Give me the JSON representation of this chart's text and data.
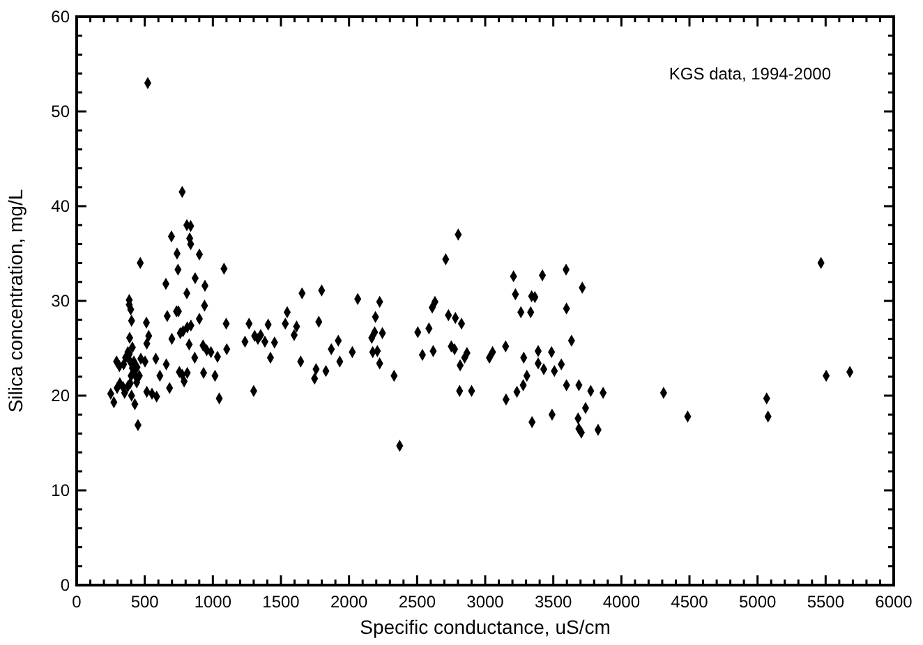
{
  "chart_data": {
    "type": "scatter",
    "xlabel": "Specific conductance, uS/cm",
    "ylabel": "Silica concentration, mg/L",
    "annotations": [
      "KGS data, 1994-2000"
    ],
    "marker": "diamond",
    "grid": false,
    "xlim": [
      0,
      6000
    ],
    "ylim": [
      0,
      60
    ],
    "xticks": [
      0,
      {
        "value": 100,
        "label": null
      },
      {
        "value": 200,
        "label": null
      },
      {
        "value": 300,
        "label": null
      },
      {
        "value": 400,
        "label": null
      },
      500,
      {
        "value": 600,
        "label": null
      },
      {
        "value": 700,
        "label": null
      },
      {
        "value": 800,
        "label": null
      },
      {
        "value": 900,
        "label": null
      },
      1000,
      {
        "value": 1100,
        "label": null
      },
      {
        "value": 1200,
        "label": null
      },
      {
        "value": 1300,
        "label": null
      },
      {
        "value": 1400,
        "label": null
      },
      1500,
      {
        "value": 1600,
        "label": null
      },
      {
        "value": 1700,
        "label": null
      },
      {
        "value": 1800,
        "label": null
      },
      {
        "value": 1900,
        "label": null
      },
      2000,
      {
        "value": 2100,
        "label": null
      },
      {
        "value": 2200,
        "label": null
      },
      {
        "value": 2300,
        "label": null
      },
      {
        "value": 2400,
        "label": null
      },
      2500,
      {
        "value": 2600,
        "label": null
      },
      {
        "value": 2700,
        "label": null
      },
      {
        "value": 2800,
        "label": null
      },
      {
        "value": 2900,
        "label": null
      },
      3000,
      {
        "value": 3100,
        "label": null
      },
      {
        "value": 3200,
        "label": null
      },
      {
        "value": 3300,
        "label": null
      },
      {
        "value": 3400,
        "label": null
      },
      3500,
      {
        "value": 3600,
        "label": null
      },
      {
        "value": 3700,
        "label": null
      },
      {
        "value": 3800,
        "label": null
      },
      {
        "value": 3900,
        "label": null
      },
      4000,
      {
        "value": 4100,
        "label": null
      },
      {
        "value": 4200,
        "label": null
      },
      {
        "value": 4300,
        "label": null
      },
      {
        "value": 4400,
        "label": null
      },
      4500,
      {
        "value": 4600,
        "label": null
      },
      {
        "value": 4700,
        "label": null
      },
      {
        "value": 4800,
        "label": null
      },
      {
        "value": 4900,
        "label": null
      },
      5000,
      {
        "value": 5100,
        "label": null
      },
      {
        "value": 5200,
        "label": null
      },
      {
        "value": 5300,
        "label": null
      },
      {
        "value": 5400,
        "label": null
      },
      5500,
      {
        "value": 5600,
        "label": null
      },
      {
        "value": 5700,
        "label": null
      },
      {
        "value": 5800,
        "label": null
      },
      {
        "value": 5900,
        "label": null
      },
      6000
    ],
    "yticks": [
      0,
      {
        "value": 2,
        "label": null
      },
      {
        "value": 4,
        "label": null
      },
      {
        "value": 6,
        "label": null
      },
      {
        "value": 8,
        "label": null
      },
      10,
      {
        "value": 12,
        "label": null
      },
      {
        "value": 14,
        "label": null
      },
      {
        "value": 16,
        "label": null
      },
      {
        "value": 18,
        "label": null
      },
      20,
      {
        "value": 22,
        "label": null
      },
      {
        "value": 24,
        "label": null
      },
      {
        "value": 26,
        "label": null
      },
      {
        "value": 28,
        "label": null
      },
      30,
      {
        "value": 32,
        "label": null
      },
      {
        "value": 34,
        "label": null
      },
      {
        "value": 36,
        "label": null
      },
      {
        "value": 38,
        "label": null
      },
      40,
      {
        "value": 42,
        "label": null
      },
      {
        "value": 44,
        "label": null
      },
      {
        "value": 46,
        "label": null
      },
      {
        "value": 48,
        "label": null
      },
      50,
      {
        "value": 52,
        "label": null
      },
      {
        "value": 54,
        "label": null
      },
      {
        "value": 56,
        "label": null
      },
      {
        "value": 58,
        "label": null
      },
      60
    ],
    "series": [
      {
        "color": "#000000",
        "x": [
          522,
          775,
          809,
          837,
          696,
          830,
          837,
          737,
          901,
          467,
          744,
          1082,
          870,
          655,
          942,
          809,
          939,
          386,
          386,
          397,
          403,
          512,
          747,
          733,
          901,
          665,
          1098,
          1266,
          1406,
          1532,
          1546,
          529,
          389,
          699,
          761,
          781,
          812,
          839,
          515,
          826,
          928,
          955,
          986,
          1034,
          1102,
          1236,
          1307,
          1351,
          1331,
          1382,
          1453,
          1423,
          1300,
          1047,
          867,
          932,
          1016,
          581,
          658,
          611,
          682,
          754,
          775,
          812,
          789,
          515,
          553,
          587,
          450,
          250,
          273,
          297,
          317,
          341,
          352,
          376,
          393,
          403,
          427,
          441,
          460,
          293,
          314,
          345,
          359,
          386,
          409,
          376,
          393,
          409,
          427,
          443,
          471,
          502,
          400,
          420,
          1655,
          1799,
          1615,
          1597,
          1778,
          2064,
          2225,
          2194,
          2188,
          2245,
          2167,
          2174,
          2208,
          2225,
          2331,
          2372,
          1645,
          1758,
          1747,
          1830,
          1932,
          1870,
          1921,
          2024,
          2802,
          2710,
          2631,
          2611,
          2505,
          2587,
          2539,
          2618,
          2730,
          2781,
          2826,
          2751,
          2775,
          2866,
          2849,
          2816,
          2812,
          2900,
          3054,
          3031,
          3150,
          3208,
          3420,
          3594,
          3222,
          3341,
          3365,
          3262,
          3334,
          3597,
          3713,
          3283,
          3389,
          3487,
          3389,
          3430,
          3508,
          3559,
          3306,
          3279,
          3233,
          3153,
          3597,
          3688,
          3634,
          3344,
          3491,
          3682,
          3688,
          3706,
          3737,
          3775,
          3866,
          3829,
          4310,
          4487,
          5067,
          5077,
          5466,
          5504,
          5678
        ],
        "values": [
          53.0,
          41.5,
          38.0,
          37.9,
          36.8,
          36.6,
          36.0,
          35.0,
          34.9,
          34.0,
          33.3,
          33.4,
          32.4,
          31.8,
          31.6,
          30.8,
          29.5,
          30.1,
          29.6,
          29.1,
          27.9,
          27.7,
          28.9,
          28.9,
          28.1,
          28.4,
          27.6,
          27.6,
          27.5,
          27.6,
          28.8,
          26.3,
          26.1,
          26.0,
          26.6,
          26.8,
          27.2,
          27.4,
          25.5,
          25.4,
          25.3,
          24.8,
          24.6,
          24.1,
          24.9,
          25.7,
          26.3,
          26.4,
          26.0,
          25.7,
          25.6,
          24.0,
          20.5,
          19.7,
          24.0,
          22.4,
          22.1,
          23.9,
          23.3,
          22.1,
          20.8,
          22.5,
          22.2,
          22.4,
          21.5,
          20.4,
          20.2,
          19.9,
          16.9,
          20.2,
          19.3,
          20.8,
          21.3,
          20.9,
          20.3,
          21.0,
          21.3,
          20.0,
          19.1,
          21.4,
          22.1,
          23.6,
          23.1,
          23.3,
          24.0,
          24.4,
          25.1,
          24.6,
          23.6,
          22.9,
          22.2,
          23.0,
          23.9,
          23.6,
          22.1,
          23.6,
          30.8,
          31.1,
          27.3,
          26.4,
          27.8,
          30.2,
          29.9,
          28.3,
          26.7,
          26.6,
          26.1,
          24.6,
          24.7,
          23.4,
          22.1,
          14.7,
          23.6,
          22.8,
          21.8,
          22.6,
          23.6,
          24.9,
          25.8,
          24.6,
          37.0,
          34.4,
          29.9,
          29.3,
          26.7,
          27.1,
          24.3,
          24.7,
          28.5,
          28.2,
          27.6,
          25.2,
          24.9,
          24.5,
          24.0,
          23.2,
          20.5,
          20.5,
          24.6,
          24.0,
          25.2,
          32.6,
          32.7,
          33.3,
          30.7,
          30.5,
          30.4,
          28.8,
          28.8,
          29.2,
          31.4,
          24.0,
          24.7,
          24.6,
          23.4,
          22.8,
          22.6,
          23.3,
          22.1,
          21.1,
          20.4,
          19.6,
          21.1,
          21.1,
          25.8,
          17.2,
          18.0,
          17.6,
          16.5,
          16.1,
          18.7,
          20.5,
          20.3,
          16.4,
          20.3,
          17.8,
          19.7,
          17.8,
          34.0,
          22.1,
          22.5
        ]
      }
    ]
  }
}
